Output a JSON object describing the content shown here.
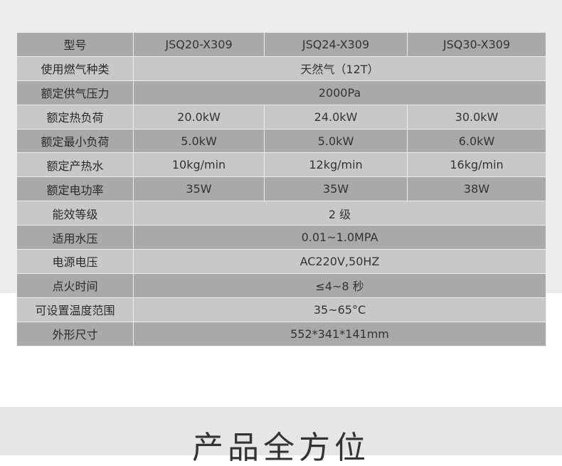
{
  "table": {
    "rows": [
      {
        "label": "型号",
        "cells": [
          "JSQ20-X309",
          "JSQ24-X309",
          "JSQ30-X309"
        ]
      },
      {
        "label": "使用燃气种类",
        "cells": [
          "天然气（12T）"
        ]
      },
      {
        "label": "额定供气压力",
        "cells": [
          "2000Pa"
        ]
      },
      {
        "label": "额定热负荷",
        "cells": [
          "20.0kW",
          "24.0kW",
          "30.0kW"
        ]
      },
      {
        "label": "额定最小负荷",
        "cells": [
          "5.0kW",
          "5.0kW",
          "6.0kW"
        ]
      },
      {
        "label": "额定产热水",
        "cells": [
          "10kg/min",
          "12kg/min",
          "16kg/min"
        ]
      },
      {
        "label": "额定电功率",
        "cells": [
          "35W",
          "35W",
          "38W"
        ]
      },
      {
        "label": "能效等级",
        "cells": [
          "2 级"
        ]
      },
      {
        "label": "适用水压",
        "cells": [
          "0.01~1.0MPA"
        ]
      },
      {
        "label": "电源电压",
        "cells": [
          "AC220V,50HZ"
        ]
      },
      {
        "label": "点火时间",
        "cells": [
          "≤4~8 秒"
        ]
      },
      {
        "label": "可设置温度范围",
        "cells": [
          "35~65°C"
        ]
      },
      {
        "label": "外形尺寸",
        "cells": [
          "552*341*141mm"
        ]
      }
    ]
  },
  "section_heading": "产品全方位"
}
